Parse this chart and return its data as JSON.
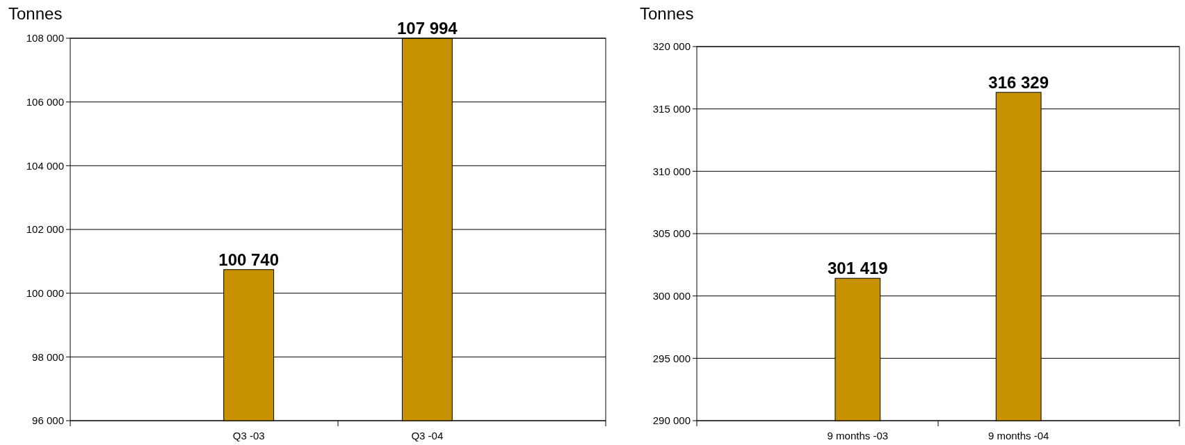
{
  "chart_data": [
    {
      "type": "bar",
      "ylabel": "Tonnes",
      "categories": [
        "Q3 -03",
        "Q3 -04"
      ],
      "values": [
        100740,
        107994
      ],
      "value_labels": [
        "100 740",
        "107 994"
      ],
      "color": "#c89100",
      "ylim": [
        96000,
        108000
      ],
      "yticks": [
        {
          "value": 96000,
          "label": "96 000"
        },
        {
          "value": 98000,
          "label": "98 000"
        },
        {
          "value": 100000,
          "label": "100 000"
        },
        {
          "value": 102000,
          "label": "102 000"
        },
        {
          "value": 104000,
          "label": "104 000"
        },
        {
          "value": 106000,
          "label": "106 000"
        },
        {
          "value": 108000,
          "label": "108 000"
        }
      ],
      "grid": "y"
    },
    {
      "type": "bar",
      "ylabel": "Tonnes",
      "categories": [
        "9 months -03",
        "9 months -04"
      ],
      "values": [
        301419,
        316329
      ],
      "value_labels": [
        "301 419",
        "316 329"
      ],
      "color": "#c89100",
      "ylim": [
        290000,
        320000
      ],
      "yticks": [
        {
          "value": 290000,
          "label": "290 000"
        },
        {
          "value": 295000,
          "label": "295 000"
        },
        {
          "value": 300000,
          "label": "300 000"
        },
        {
          "value": 305000,
          "label": "305 000"
        },
        {
          "value": 310000,
          "label": "310 000"
        },
        {
          "value": 315000,
          "label": "315 000"
        },
        {
          "value": 320000,
          "label": "320 000"
        }
      ],
      "grid": "y"
    }
  ]
}
